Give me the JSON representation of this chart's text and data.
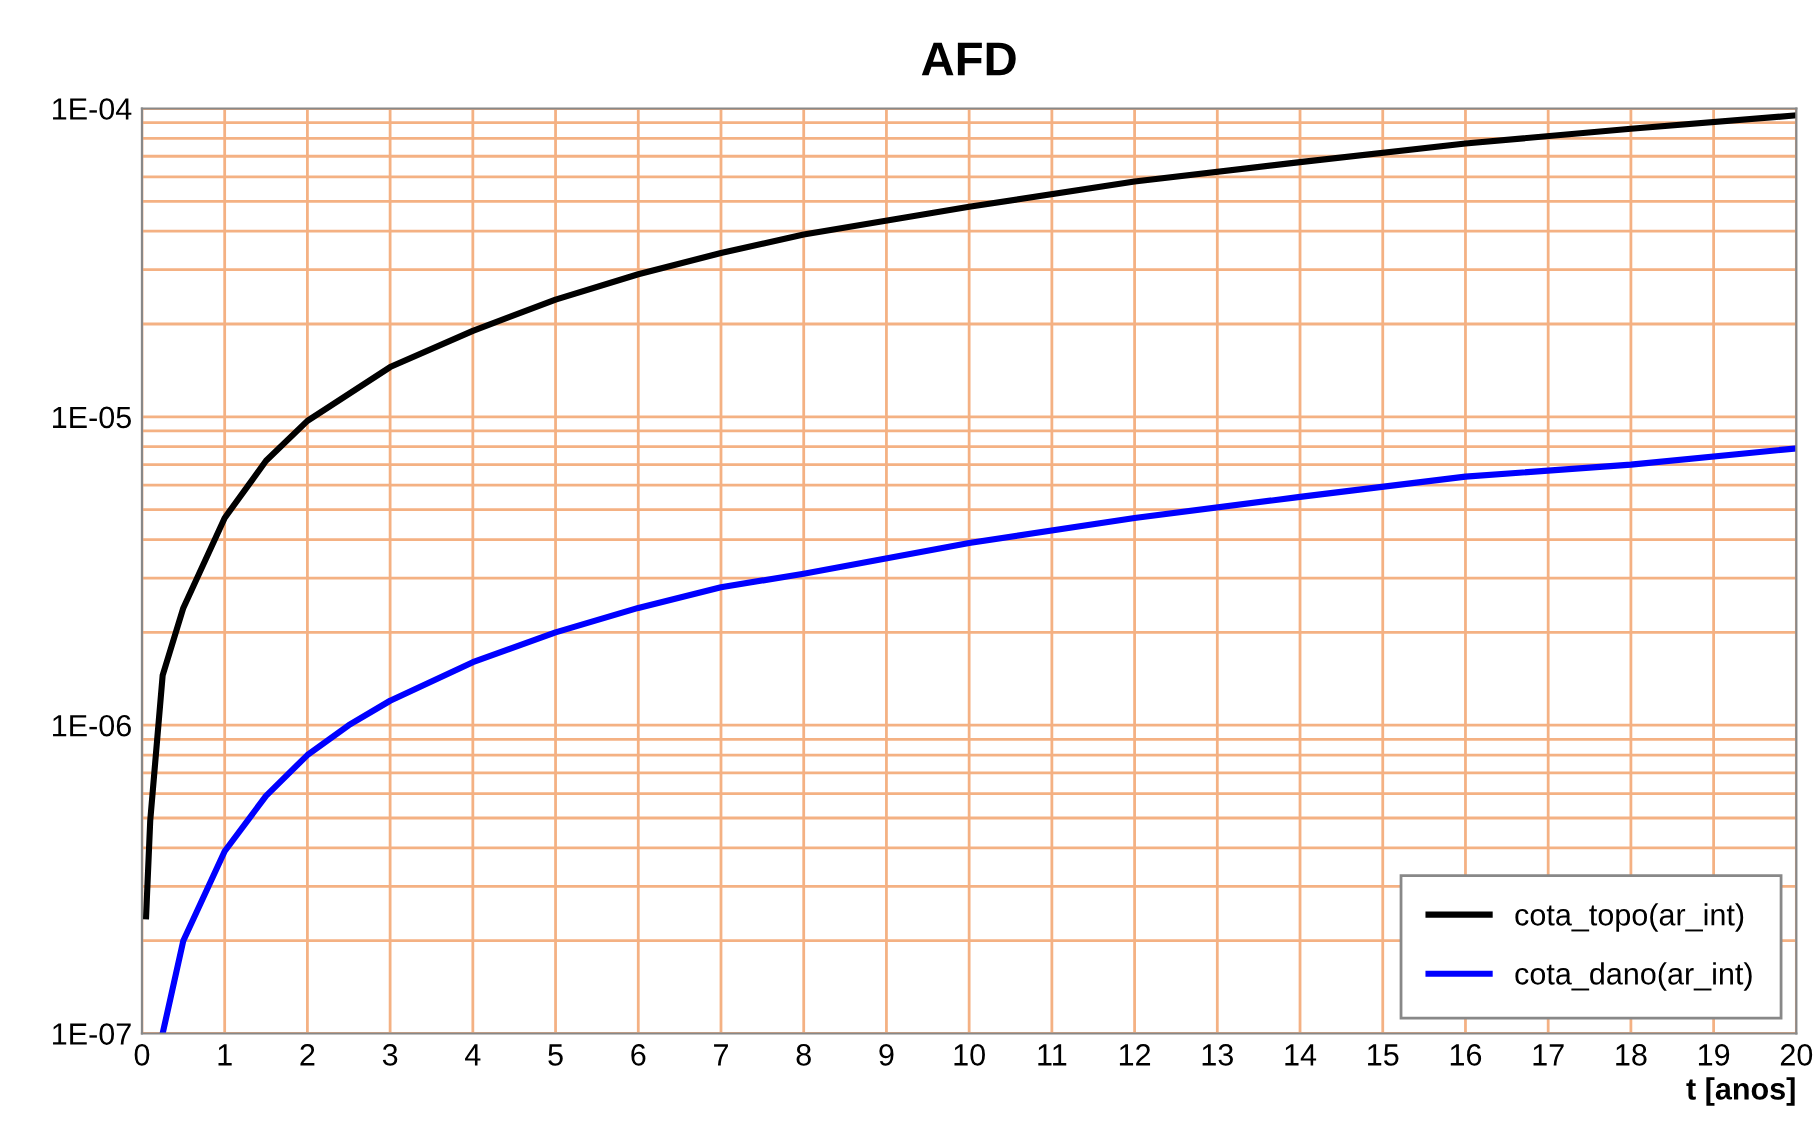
{
  "chart_data": {
    "type": "line",
    "title": "AFD",
    "xlabel": "t [anos]",
    "log": "y",
    "grid": true,
    "legend": "bottom right",
    "line_style": "solid",
    "marker": "none",
    "xlim": [
      0,
      20
    ],
    "xticks": [
      0,
      1,
      2,
      3,
      4,
      5,
      6,
      7,
      8,
      9,
      10,
      11,
      12,
      13,
      14,
      15,
      16,
      17,
      18,
      19,
      20
    ],
    "ylim": [
      1e-07,
      0.0001
    ],
    "yticks": [
      {
        "value": 1e-07,
        "label": "1E-07"
      },
      {
        "value": 2e-07,
        "label": null
      },
      {
        "value": 3e-07,
        "label": null
      },
      {
        "value": 4e-07,
        "label": null
      },
      {
        "value": 5e-07,
        "label": null
      },
      {
        "value": 6e-07,
        "label": null
      },
      {
        "value": 7e-07,
        "label": null
      },
      {
        "value": 8e-07,
        "label": null
      },
      {
        "value": 9e-07,
        "label": null
      },
      {
        "value": 1e-06,
        "label": "1E-06"
      },
      {
        "value": 2e-06,
        "label": null
      },
      {
        "value": 3e-06,
        "label": null
      },
      {
        "value": 4e-06,
        "label": null
      },
      {
        "value": 5e-06,
        "label": null
      },
      {
        "value": 6e-06,
        "label": null
      },
      {
        "value": 7e-06,
        "label": null
      },
      {
        "value": 8e-06,
        "label": null
      },
      {
        "value": 9e-06,
        "label": null
      },
      {
        "value": 1e-05,
        "label": "1E-05"
      },
      {
        "value": 2e-05,
        "label": null
      },
      {
        "value": 3e-05,
        "label": null
      },
      {
        "value": 4e-05,
        "label": null
      },
      {
        "value": 5e-05,
        "label": null
      },
      {
        "value": 6e-05,
        "label": null
      },
      {
        "value": 7e-05,
        "label": null
      },
      {
        "value": 8e-05,
        "label": null
      },
      {
        "value": 9e-05,
        "label": null
      },
      {
        "value": 0.0001,
        "label": "1E-04"
      }
    ],
    "series": [
      {
        "name": "cota_topo(ar_int)",
        "color": "#000000",
        "x": [
          0.05,
          0.1,
          0.25,
          0.5,
          1,
          1.5,
          2,
          3,
          4,
          5,
          6,
          7,
          8,
          10,
          12,
          14,
          16,
          18,
          20
        ],
        "values": [
          2.4e-07,
          4.9e-07,
          1.45e-06,
          2.4e-06,
          4.7e-06,
          7.2e-06,
          9.7e-06,
          1.45e-05,
          1.9e-05,
          2.4e-05,
          2.9e-05,
          3.4e-05,
          3.9e-05,
          4.8e-05,
          5.8e-05,
          6.7e-05,
          7.7e-05,
          8.6e-05,
          9.5e-05
        ]
      },
      {
        "name": "cota_dano(ar_int)",
        "color": "#0000ff",
        "x": [
          0.25,
          0.5,
          1,
          1.5,
          2,
          2.5,
          3,
          4,
          5,
          6,
          7,
          8,
          10,
          12,
          14,
          16,
          18,
          20
        ],
        "values": [
          1e-07,
          2e-07,
          3.9e-07,
          5.9e-07,
          8e-07,
          1e-06,
          1.2e-06,
          1.6e-06,
          2e-06,
          2.4e-06,
          2.8e-06,
          3.1e-06,
          3.9e-06,
          4.7e-06,
          5.5e-06,
          6.4e-06,
          7e-06,
          7.9e-06
        ]
      }
    ]
  }
}
